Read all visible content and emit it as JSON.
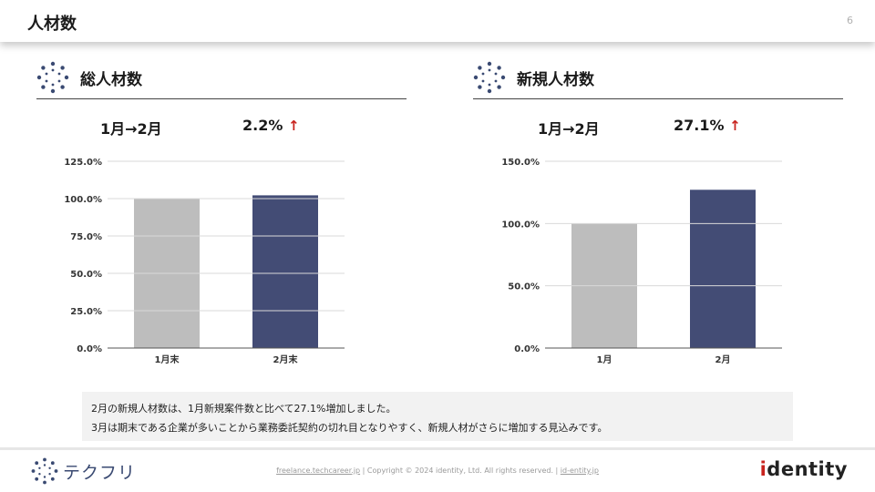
{
  "header": {
    "title": "人材数",
    "page_number": "6"
  },
  "sections": [
    {
      "title": "総人材数",
      "period": "1月→2月",
      "change": "2.2%",
      "arrow": "↑"
    },
    {
      "title": "新規人材数",
      "period": "1月→2月",
      "change": "27.1%",
      "arrow": "↑"
    }
  ],
  "chart_data": [
    {
      "type": "bar",
      "categories": [
        "1月末",
        "2月末"
      ],
      "values": [
        100.0,
        102.2
      ],
      "ylim": [
        0,
        125
      ],
      "yticks": [
        "0.0%",
        "25.0%",
        "50.0%",
        "75.0%",
        "100.0%",
        "125.0%"
      ],
      "colors": [
        "#bdbdbd",
        "#434c75"
      ],
      "grid": true
    },
    {
      "type": "bar",
      "categories": [
        "1月",
        "2月"
      ],
      "values": [
        100.0,
        127.1
      ],
      "ylim": [
        0,
        150
      ],
      "yticks": [
        "0.0%",
        "50.0%",
        "100.0%",
        "150.0%"
      ],
      "colors": [
        "#bdbdbd",
        "#434c75"
      ],
      "grid": true
    }
  ],
  "note": {
    "line1": "2月の新規人材数は、1月新規案件数と比べて27.1%増加しました。",
    "line2": "3月は期末である企業が多いことから業務委託契約の切れ目となりやすく、新規人材がさらに増加する見込みです。"
  },
  "footer": {
    "logo_text": "テクフリ",
    "link1": "freelance.techcareer.jp",
    "sep": "|",
    "copyright": "Copyright © 2024 identity, Ltd. All rights reserved.",
    "link2": "id-entity.jp",
    "brand_prefix": "i",
    "brand_rest": "dentity"
  },
  "colors": {
    "accent": "#c8231e",
    "bar_primary": "#434c75",
    "bar_secondary": "#bdbdbd",
    "icon": "#3a4a72"
  },
  "icons": {
    "section": "dotted-ring-icon",
    "logo": "dotted-ring-icon",
    "change": "arrow-up-icon"
  }
}
